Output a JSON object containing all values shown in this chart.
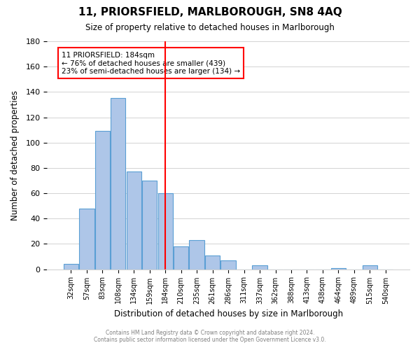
{
  "title": "11, PRIORSFIELD, MARLBOROUGH, SN8 4AQ",
  "subtitle": "Size of property relative to detached houses in Marlborough",
  "xlabel": "Distribution of detached houses by size in Marlborough",
  "ylabel": "Number of detached properties",
  "bar_labels": [
    "32sqm",
    "57sqm",
    "83sqm",
    "108sqm",
    "134sqm",
    "159sqm",
    "184sqm",
    "210sqm",
    "235sqm",
    "261sqm",
    "286sqm",
    "311sqm",
    "337sqm",
    "362sqm",
    "388sqm",
    "413sqm",
    "438sqm",
    "464sqm",
    "489sqm",
    "515sqm",
    "540sqm"
  ],
  "bar_values": [
    4,
    48,
    109,
    135,
    77,
    70,
    60,
    18,
    23,
    11,
    7,
    0,
    3,
    0,
    0,
    0,
    0,
    1,
    0,
    3,
    0
  ],
  "bar_color": "#aec6e8",
  "bar_edge_color": "#5a9fd4",
  "vline_x": 6,
  "vline_color": "red",
  "annotation_title": "11 PRIORSFIELD: 184sqm",
  "annotation_line1": "← 76% of detached houses are smaller (439)",
  "annotation_line2": "23% of semi-detached houses are larger (134) →",
  "annotation_box_color": "white",
  "annotation_box_edge": "red",
  "ylim": [
    0,
    180
  ],
  "yticks": [
    0,
    20,
    40,
    60,
    80,
    100,
    120,
    140,
    160,
    180
  ],
  "footer1": "Contains HM Land Registry data © Crown copyright and database right 2024.",
  "footer2": "Contains public sector information licensed under the Open Government Licence v3.0."
}
